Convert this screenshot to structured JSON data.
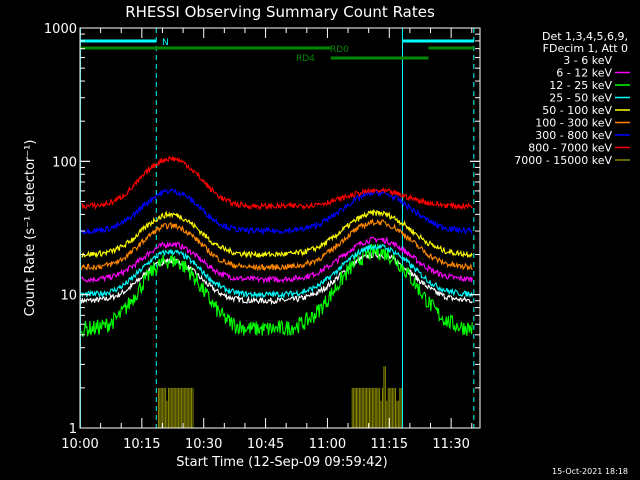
{
  "chart_data": {
    "type": "line",
    "title": "RHESSI Observing Summary Count Rates",
    "xlabel": "Start Time (12-Sep-09 09:59:42)",
    "ylabel": "Count Rate (s⁻¹ detector⁻¹)",
    "y_scale": "log",
    "ylim": [
      1,
      1000
    ],
    "xlim_minutes": [
      0,
      97
    ],
    "y_ticks": [
      {
        "value": 1,
        "label": "1"
      },
      {
        "value": 10,
        "label": "10"
      },
      {
        "value": 100,
        "label": "100"
      },
      {
        "value": 1000,
        "label": "1000"
      }
    ],
    "x_ticks": [
      {
        "value": 0,
        "label": "10:00"
      },
      {
        "value": 15,
        "label": "10:15"
      },
      {
        "value": 30,
        "label": "10:30"
      },
      {
        "value": 45,
        "label": "10:45"
      },
      {
        "value": 60,
        "label": "11:00"
      },
      {
        "value": 75,
        "label": "11:15"
      },
      {
        "value": 90,
        "label": "11:30"
      }
    ],
    "info": [
      "Det 1,3,4,5,6,9,",
      "FDecim 1, Att 0"
    ],
    "timestamp": "15-Oct-2021 18:18",
    "vertical_markers": [
      {
        "x": 0.1,
        "style": "solid"
      },
      {
        "x": 18.5,
        "style": "dashed"
      },
      {
        "x": 78.2,
        "style": "solid"
      },
      {
        "x": 95.5,
        "style": "dashed"
      }
    ],
    "status_bars": [
      {
        "label": "N",
        "color": "#00ffff",
        "segments": [
          [
            0,
            18.5
          ],
          [
            78.2,
            95.5
          ]
        ]
      },
      {
        "label": "RD0",
        "color": "#008800",
        "segments": [
          [
            0,
            60.8
          ],
          [
            84.5,
            95.5
          ]
        ]
      },
      {
        "label": "RD4",
        "color": "#008800",
        "segments": [
          [
            60.8,
            84.5
          ]
        ]
      }
    ],
    "series": [
      {
        "name": "3 - 6 keV",
        "color": "#ffffff",
        "legend_color": "#000000",
        "base": 9,
        "peak1": 18,
        "peak2": 20
      },
      {
        "name": "6 - 12 keV",
        "color": "#ff00ff",
        "base": 13,
        "peak1": 24,
        "peak2": 26
      },
      {
        "name": "12 - 25 keV",
        "color": "#00ff00",
        "base": 5.5,
        "peak1": 18,
        "peak2": 21
      },
      {
        "name": "25 - 50 keV",
        "color": "#00ffff",
        "base": 10,
        "peak1": 21,
        "peak2": 23
      },
      {
        "name": "50 - 100 keV",
        "color": "#ffff00",
        "base": 20,
        "peak1": 40,
        "peak2": 41
      },
      {
        "name": "100 - 300 keV",
        "color": "#ff8800",
        "base": 16,
        "peak1": 33,
        "peak2": 35
      },
      {
        "name": "300 - 800 keV",
        "color": "#0000ff",
        "base": 30,
        "peak1": 60,
        "peak2": 58
      },
      {
        "name": "800 - 7000 keV",
        "color": "#ff0000",
        "base": 46,
        "peak1": 105,
        "peak2": 60
      },
      {
        "name": "7000 - 15000 keV",
        "color": "#888800",
        "base": 0
      }
    ]
  }
}
